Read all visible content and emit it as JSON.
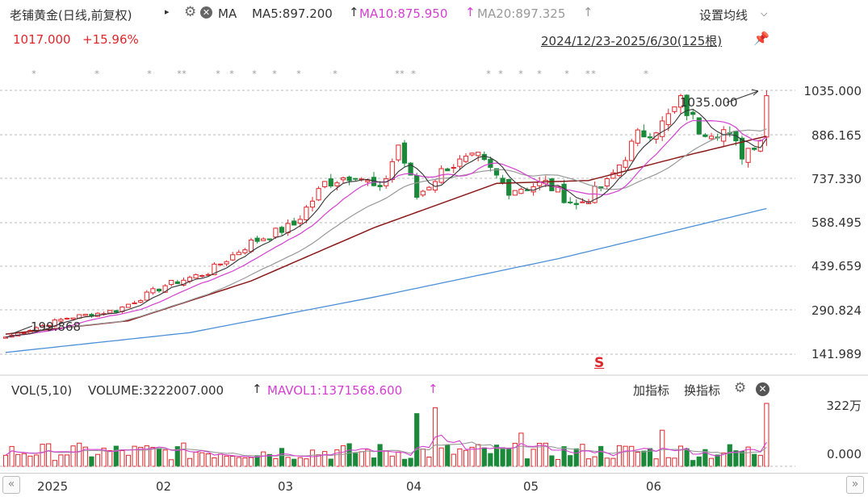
{
  "header": {
    "title": "老铺黄金(日线,前复权)",
    "ma_label": "MA",
    "ma5": "MA5:897.200",
    "ma10": "MA10:875.950",
    "ma20": "MA20:897.325",
    "settings": "设置均线",
    "price": "1017.000",
    "change": "+15.96%",
    "range": "2024/12/23-2025/6/30(125根)"
  },
  "price_axis": [
    "1035.000",
    "886.165",
    "737.330",
    "588.495",
    "439.659",
    "290.824",
    "141.989"
  ],
  "annotations": {
    "max_label": "1035.000",
    "min_label": "199.868",
    "s_marker": "S"
  },
  "vol_header": {
    "label": "VOL(5,10)",
    "volume": "VOLUME:3222007.000",
    "mavol": "MAVOL1:1371568.600",
    "add_indicator": "加指标",
    "switch_indicator": "换指标"
  },
  "vol_axis": [
    "322万",
    "0.000"
  ],
  "x_labels": [
    "2025",
    "02",
    "03",
    "04",
    "05",
    "06"
  ],
  "colors": {
    "up": "#e0262b",
    "down": "#1a8a3a",
    "ma5": "#333333",
    "ma10": "#d43fd1",
    "ma20": "#999999",
    "ma60": "#8b1a1a",
    "ma250": "#4a8fd8"
  },
  "chart_data": {
    "type": "candlestick",
    "ylim": [
      141.989,
      1035.0
    ],
    "volume_max": 3222007,
    "anchors": [
      {
        "i": 0,
        "c": 200
      },
      {
        "i": 10,
        "c": 265
      },
      {
        "i": 18,
        "c": 290
      },
      {
        "i": 26,
        "c": 375
      },
      {
        "i": 33,
        "c": 420
      },
      {
        "i": 40,
        "c": 520
      },
      {
        "i": 47,
        "c": 580
      },
      {
        "i": 52,
        "c": 720
      },
      {
        "i": 57,
        "c": 755
      },
      {
        "i": 61,
        "c": 690
      },
      {
        "i": 64,
        "c": 850
      },
      {
        "i": 67,
        "c": 675
      },
      {
        "i": 72,
        "c": 780
      },
      {
        "i": 77,
        "c": 805
      },
      {
        "i": 82,
        "c": 700
      },
      {
        "i": 88,
        "c": 720
      },
      {
        "i": 93,
        "c": 645
      },
      {
        "i": 98,
        "c": 720
      },
      {
        "i": 103,
        "c": 880
      },
      {
        "i": 107,
        "c": 920
      },
      {
        "i": 110,
        "c": 995
      },
      {
        "i": 113,
        "c": 905
      },
      {
        "i": 117,
        "c": 900
      },
      {
        "i": 120,
        "c": 820
      },
      {
        "i": 123,
        "c": 877
      },
      {
        "i": 124,
        "c": 1017
      }
    ],
    "ma60_anchors": [
      {
        "i": 0,
        "v": 210
      },
      {
        "i": 20,
        "v": 255
      },
      {
        "i": 40,
        "v": 390
      },
      {
        "i": 60,
        "v": 570
      },
      {
        "i": 80,
        "v": 720
      },
      {
        "i": 95,
        "v": 730
      },
      {
        "i": 110,
        "v": 810
      },
      {
        "i": 124,
        "v": 880
      }
    ],
    "ma250_anchors": [
      {
        "i": 0,
        "v": 148
      },
      {
        "i": 30,
        "v": 215
      },
      {
        "i": 60,
        "v": 335
      },
      {
        "i": 90,
        "v": 465
      },
      {
        "i": 110,
        "v": 565
      },
      {
        "i": 124,
        "v": 635
      }
    ]
  }
}
